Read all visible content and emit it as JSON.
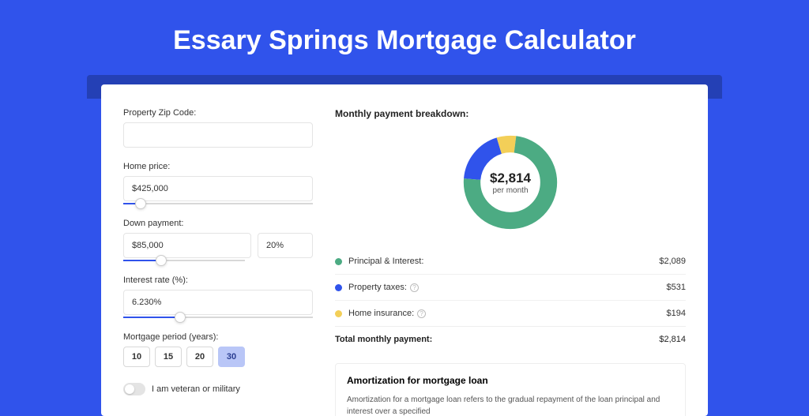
{
  "title": "Essary Springs Mortgage Calculator",
  "colors": {
    "page_bg": "#3053eb",
    "shadow_bar": "#2440b5",
    "principal": "#4cab83",
    "taxes": "#3053eb",
    "insurance": "#f3cf58"
  },
  "form": {
    "zip": {
      "label": "Property Zip Code:",
      "value": ""
    },
    "home_price": {
      "label": "Home price:",
      "value": "$425,000",
      "slider_pct": 9
    },
    "down_payment": {
      "label": "Down payment:",
      "amount": "$85,000",
      "pct": "20%",
      "slider_pct": 20
    },
    "interest_rate": {
      "label": "Interest rate (%):",
      "value": "6.230%",
      "slider_pct": 30
    },
    "period": {
      "label": "Mortgage period (years):",
      "options": [
        "10",
        "15",
        "20",
        "30"
      ],
      "selected": "30"
    },
    "veteran": {
      "label": "I am veteran or military",
      "checked": false
    }
  },
  "breakdown": {
    "title": "Monthly payment breakdown:",
    "donut": {
      "amount": "$2,814",
      "sub": "per month"
    },
    "slices": [
      {
        "key": "principal",
        "pct": 74.2
      },
      {
        "key": "taxes",
        "pct": 18.9
      },
      {
        "key": "insurance",
        "pct": 6.9
      }
    ],
    "items": [
      {
        "label": "Principal & Interest:",
        "value": "$2,089",
        "color_key": "principal",
        "help": false
      },
      {
        "label": "Property taxes:",
        "value": "$531",
        "color_key": "taxes",
        "help": true
      },
      {
        "label": "Home insurance:",
        "value": "$194",
        "color_key": "insurance",
        "help": true
      }
    ],
    "total": {
      "label": "Total monthly payment:",
      "value": "$2,814"
    }
  },
  "amortization": {
    "title": "Amortization for mortgage loan",
    "body": "Amortization for a mortgage loan refers to the gradual repayment of the loan principal and interest over a specified"
  }
}
